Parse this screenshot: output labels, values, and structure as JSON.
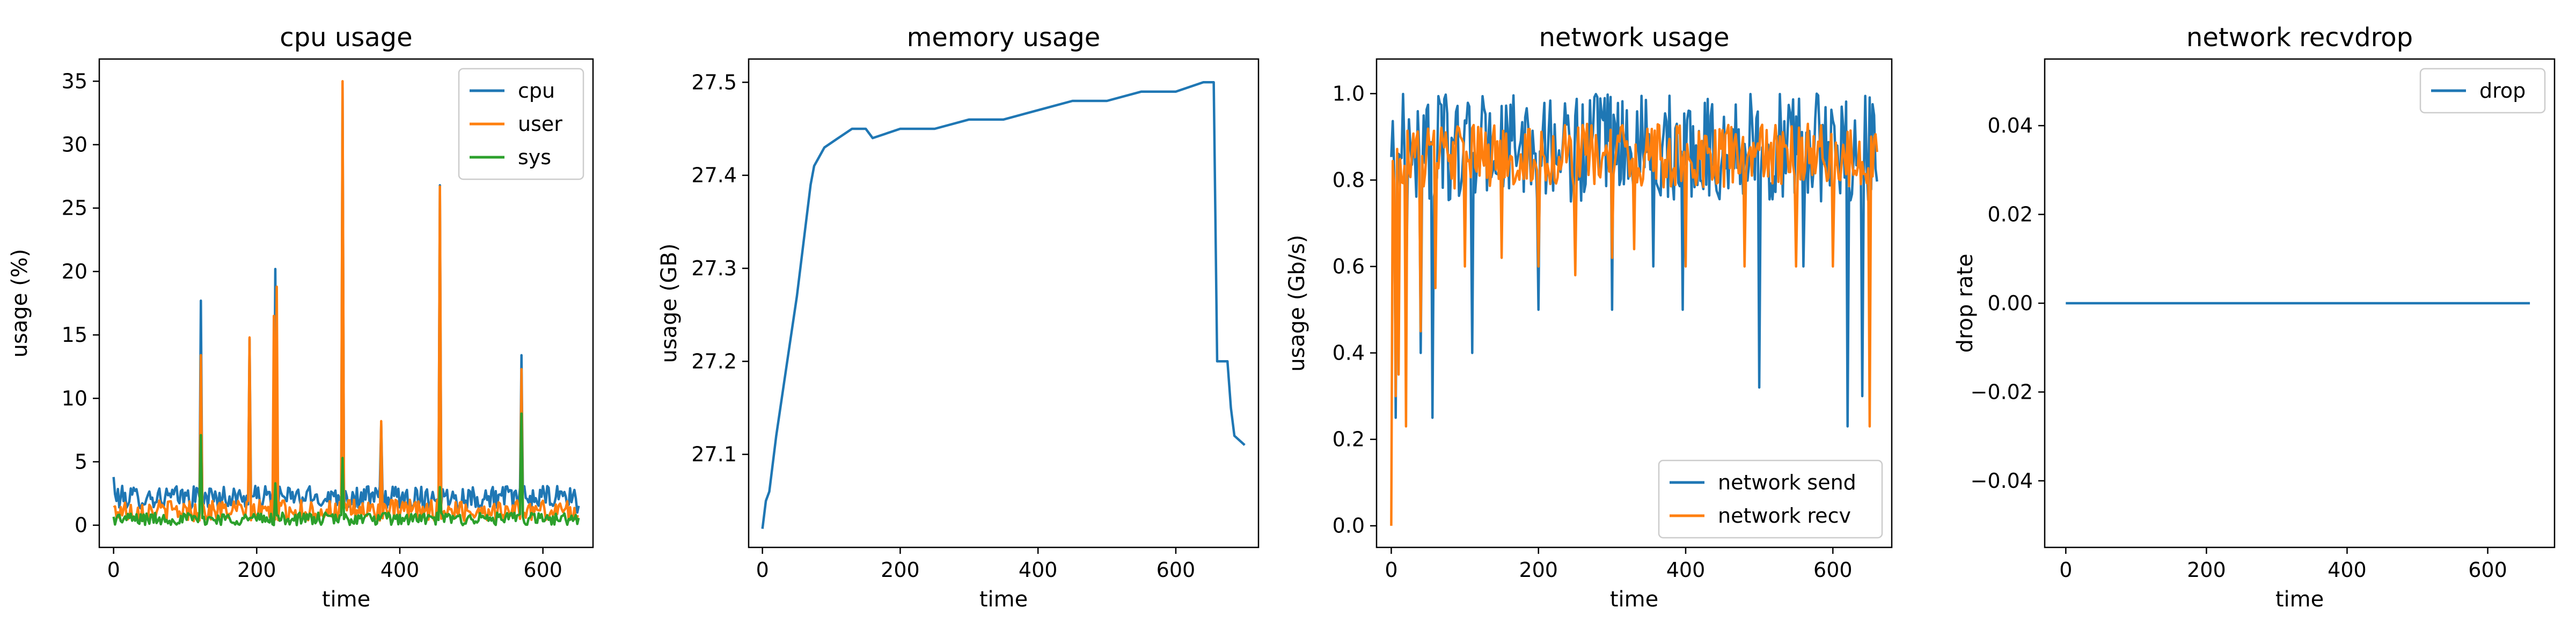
{
  "chart_data": [
    {
      "type": "line",
      "title": "cpu usage",
      "xlabel": "time",
      "ylabel": "usage (%)",
      "xlim": [
        -20,
        670
      ],
      "ylim": [
        -1.75,
        36.75
      ],
      "xticks": [
        0,
        200,
        400,
        600
      ],
      "yticks": [
        0,
        5,
        10,
        15,
        20,
        25,
        30,
        35
      ],
      "grid": false,
      "legend_position": "top-right",
      "x_range": [
        0,
        650
      ],
      "series": [
        {
          "name": "cpu",
          "color": "#1f77b4",
          "base": [
            1.3,
            3.1
          ],
          "spikes": [
            [
              0,
              3.8
            ],
            [
              122,
              17.7
            ],
            [
              190,
              14.7
            ],
            [
              226,
              20.2
            ],
            [
              320,
              34.5
            ],
            [
              374,
              8.0
            ],
            [
              456,
              26.8
            ],
            [
              570,
              13.4
            ],
            [
              648,
              1.0
            ]
          ]
        },
        {
          "name": "user",
          "color": "#ff7f0e",
          "base": [
            0.3,
            2.0
          ],
          "spikes": [
            [
              122,
              13.4
            ],
            [
              190,
              14.8
            ],
            [
              224,
              16.5
            ],
            [
              227,
              18.8
            ],
            [
              320,
              35.0
            ],
            [
              374,
              8.2
            ],
            [
              456,
              26.7
            ],
            [
              570,
              12.3
            ],
            [
              648,
              0.7
            ]
          ]
        },
        {
          "name": "sys",
          "color": "#2ca02c",
          "base": [
            0.0,
            1.0
          ],
          "spikes": [
            [
              122,
              7.1
            ],
            [
              226,
              3.3
            ],
            [
              320,
              5.3
            ],
            [
              456,
              3.0
            ],
            [
              570,
              8.8
            ],
            [
              648,
              0.1
            ]
          ]
        }
      ]
    },
    {
      "type": "line",
      "title": "memory usage",
      "xlabel": "time",
      "ylabel": "usage (GB)",
      "xlim": [
        -20,
        720
      ],
      "ylim": [
        27.0,
        27.525
      ],
      "xticks": [
        0,
        200,
        400,
        600
      ],
      "yticks": [
        27.1,
        27.2,
        27.3,
        27.4,
        27.5
      ],
      "ytick_labels": [
        "27.1",
        "27.2",
        "27.3",
        "27.4",
        "27.5"
      ],
      "grid": false,
      "series": [
        {
          "name": "",
          "color": "#1f77b4",
          "points": [
            [
              0,
              27.02
            ],
            [
              5,
              27.05
            ],
            [
              10,
              27.06
            ],
            [
              20,
              27.12
            ],
            [
              30,
              27.17
            ],
            [
              40,
              27.22
            ],
            [
              50,
              27.27
            ],
            [
              60,
              27.33
            ],
            [
              70,
              27.39
            ],
            [
              75,
              27.41
            ],
            [
              90,
              27.43
            ],
            [
              110,
              27.44
            ],
            [
              130,
              27.45
            ],
            [
              140,
              27.45
            ],
            [
              150,
              27.45
            ],
            [
              160,
              27.44
            ],
            [
              200,
              27.45
            ],
            [
              250,
              27.45
            ],
            [
              300,
              27.46
            ],
            [
              350,
              27.46
            ],
            [
              400,
              27.47
            ],
            [
              450,
              27.48
            ],
            [
              500,
              27.48
            ],
            [
              550,
              27.49
            ],
            [
              600,
              27.49
            ],
            [
              640,
              27.5
            ],
            [
              655,
              27.5
            ],
            [
              660,
              27.2
            ],
            [
              675,
              27.2
            ],
            [
              680,
              27.15
            ],
            [
              685,
              27.12
            ],
            [
              700,
              27.11
            ]
          ]
        }
      ]
    },
    {
      "type": "line",
      "title": "network usage",
      "xlabel": "time",
      "ylabel": "usage (Gb/s)",
      "xlim": [
        -20,
        680
      ],
      "ylim": [
        -0.05,
        1.08
      ],
      "xticks": [
        0,
        200,
        400,
        600
      ],
      "yticks": [
        0.0,
        0.2,
        0.4,
        0.6,
        0.8,
        1.0
      ],
      "ytick_labels": [
        "0.0",
        "0.2",
        "0.4",
        "0.6",
        "0.8",
        "1.0"
      ],
      "grid": false,
      "legend_position": "bottom-right",
      "x_range": [
        0,
        660
      ],
      "series": [
        {
          "name": "network send",
          "color": "#1f77b4",
          "base": [
            0.75,
            1.0
          ],
          "drops": [
            [
              5,
              0.25
            ],
            [
              20,
              0.5
            ],
            [
              40,
              0.4
            ],
            [
              55,
              0.25
            ],
            [
              110,
              0.4
            ],
            [
              200,
              0.5
            ],
            [
              300,
              0.5
            ],
            [
              355,
              0.6
            ],
            [
              395,
              0.5
            ],
            [
              500,
              0.32
            ],
            [
              560,
              0.6
            ],
            [
              620,
              0.23
            ],
            [
              640,
              0.3
            ]
          ]
        },
        {
          "name": "network recv",
          "color": "#ff7f0e",
          "base": [
            0.78,
            0.93
          ],
          "drops": [
            [
              0,
              0.0
            ],
            [
              5,
              0.3
            ],
            [
              10,
              0.35
            ],
            [
              20,
              0.23
            ],
            [
              40,
              0.45
            ],
            [
              60,
              0.55
            ],
            [
              100,
              0.6
            ],
            [
              150,
              0.62
            ],
            [
              200,
              0.6
            ],
            [
              250,
              0.58
            ],
            [
              300,
              0.62
            ],
            [
              330,
              0.64
            ],
            [
              400,
              0.6
            ],
            [
              480,
              0.6
            ],
            [
              550,
              0.6
            ],
            [
              600,
              0.6
            ],
            [
              650,
              0.23
            ]
          ]
        }
      ]
    },
    {
      "type": "line",
      "title": "network recvdrop",
      "xlabel": "time",
      "ylabel": "drop rate",
      "xlim": [
        -30,
        695
      ],
      "ylim": [
        -0.055,
        0.055
      ],
      "xticks": [
        0,
        200,
        400,
        600
      ],
      "yticks": [
        -0.04,
        -0.02,
        0.0,
        0.02,
        0.04
      ],
      "ytick_labels": [
        "−0.04",
        "−0.02",
        "0.00",
        "0.02",
        "0.04"
      ],
      "grid": false,
      "legend_position": "top-right",
      "series": [
        {
          "name": "drop",
          "color": "#1f77b4",
          "points": [
            [
              0,
              0.0
            ],
            [
              660,
              0.0
            ]
          ]
        }
      ]
    }
  ]
}
